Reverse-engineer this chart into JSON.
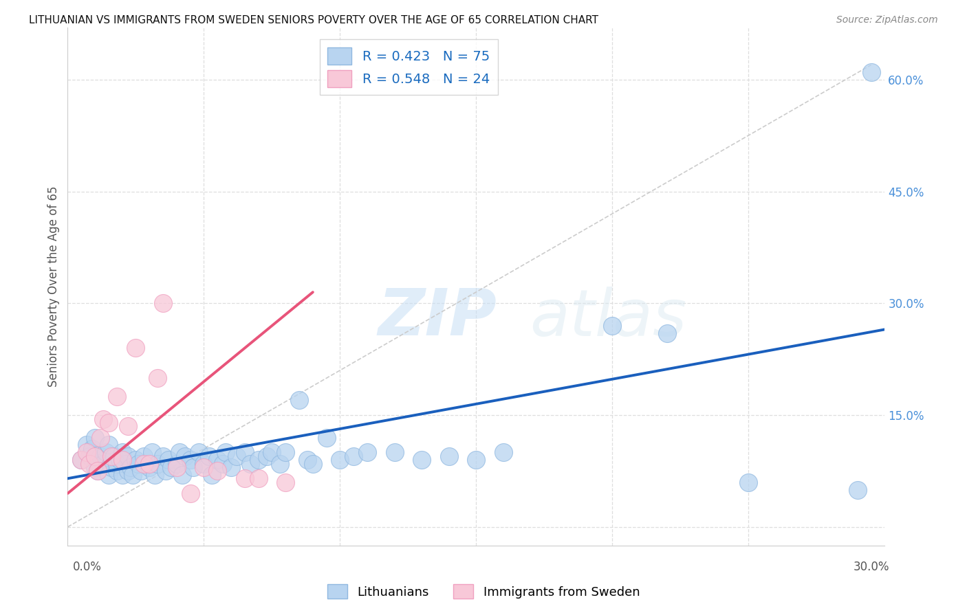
{
  "title": "LITHUANIAN VS IMMIGRANTS FROM SWEDEN SENIORS POVERTY OVER THE AGE OF 65 CORRELATION CHART",
  "source": "Source: ZipAtlas.com",
  "ylabel": "Seniors Poverty Over the Age of 65",
  "right_ytick_vals": [
    0.0,
    0.15,
    0.3,
    0.45,
    0.6
  ],
  "right_ytick_labels": [
    "",
    "15.0%",
    "30.0%",
    "45.0%",
    "60.0%"
  ],
  "xmin": 0.0,
  "xmax": 0.3,
  "ymin": -0.025,
  "ymax": 0.67,
  "watermark1": "ZIP",
  "watermark2": "atlas",
  "blue_scatter_x": [
    0.005,
    0.007,
    0.008,
    0.009,
    0.01,
    0.01,
    0.011,
    0.012,
    0.013,
    0.014,
    0.015,
    0.015,
    0.016,
    0.017,
    0.018,
    0.018,
    0.019,
    0.02,
    0.02,
    0.021,
    0.022,
    0.022,
    0.023,
    0.024,
    0.025,
    0.026,
    0.027,
    0.028,
    0.03,
    0.031,
    0.032,
    0.033,
    0.035,
    0.036,
    0.037,
    0.038,
    0.04,
    0.041,
    0.042,
    0.043,
    0.045,
    0.046,
    0.048,
    0.05,
    0.052,
    0.053,
    0.055,
    0.057,
    0.058,
    0.06,
    0.062,
    0.065,
    0.067,
    0.07,
    0.073,
    0.075,
    0.078,
    0.08,
    0.085,
    0.088,
    0.09,
    0.095,
    0.1,
    0.105,
    0.11,
    0.12,
    0.13,
    0.14,
    0.15,
    0.16,
    0.2,
    0.22,
    0.25,
    0.29,
    0.295
  ],
  "blue_scatter_y": [
    0.09,
    0.11,
    0.095,
    0.105,
    0.08,
    0.12,
    0.075,
    0.095,
    0.085,
    0.1,
    0.07,
    0.11,
    0.08,
    0.095,
    0.075,
    0.085,
    0.09,
    0.07,
    0.1,
    0.085,
    0.075,
    0.095,
    0.08,
    0.07,
    0.09,
    0.085,
    0.075,
    0.095,
    0.08,
    0.1,
    0.07,
    0.085,
    0.095,
    0.075,
    0.09,
    0.08,
    0.085,
    0.1,
    0.07,
    0.095,
    0.09,
    0.08,
    0.1,
    0.085,
    0.095,
    0.07,
    0.09,
    0.085,
    0.1,
    0.08,
    0.095,
    0.1,
    0.085,
    0.09,
    0.095,
    0.1,
    0.085,
    0.1,
    0.17,
    0.09,
    0.085,
    0.12,
    0.09,
    0.095,
    0.1,
    0.1,
    0.09,
    0.095,
    0.09,
    0.1,
    0.27,
    0.26,
    0.06,
    0.05,
    0.61
  ],
  "pink_scatter_x": [
    0.005,
    0.007,
    0.008,
    0.01,
    0.011,
    0.012,
    0.013,
    0.015,
    0.016,
    0.018,
    0.02,
    0.022,
    0.025,
    0.028,
    0.03,
    0.033,
    0.035,
    0.04,
    0.045,
    0.05,
    0.055,
    0.065,
    0.07,
    0.08
  ],
  "pink_scatter_y": [
    0.09,
    0.1,
    0.085,
    0.095,
    0.075,
    0.12,
    0.145,
    0.14,
    0.095,
    0.175,
    0.09,
    0.135,
    0.24,
    0.085,
    0.085,
    0.2,
    0.3,
    0.08,
    0.045,
    0.08,
    0.075,
    0.065,
    0.065,
    0.06
  ],
  "blue_line_x": [
    0.0,
    0.3
  ],
  "blue_line_y": [
    0.065,
    0.265
  ],
  "pink_line_x": [
    0.0,
    0.09
  ],
  "pink_line_y": [
    0.045,
    0.315
  ],
  "diag_line_x": [
    0.0,
    0.295
  ],
  "diag_line_y": [
    0.0,
    0.62
  ],
  "blue_line_color": "#1a5fbd",
  "pink_line_color": "#e8547a",
  "diag_line_color": "#cccccc",
  "grid_color": "#dedede",
  "scatter_blue_face": "#b8d4f0",
  "scatter_blue_edge": "#90b8e0",
  "scatter_pink_face": "#f8c8d8",
  "scatter_pink_edge": "#f0a0c0"
}
